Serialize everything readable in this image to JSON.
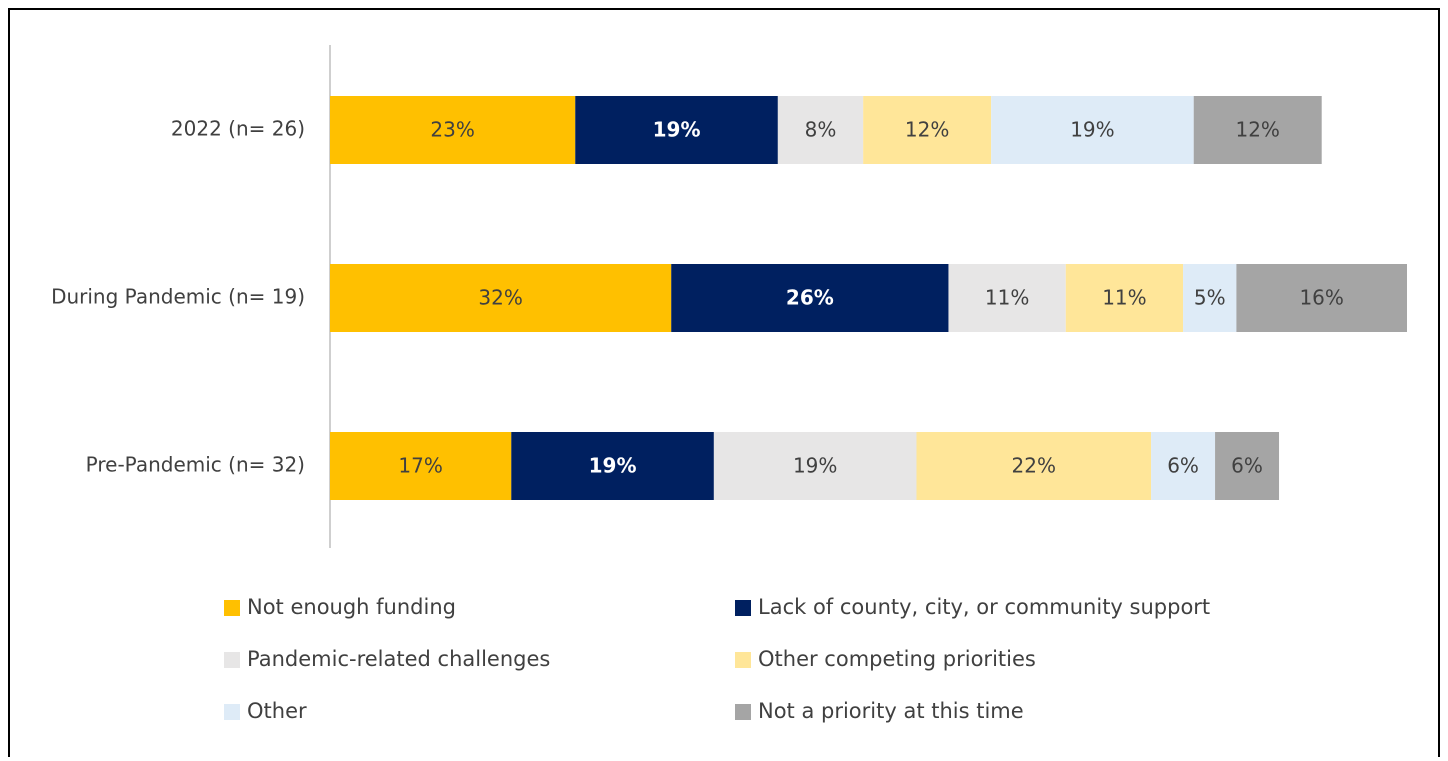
{
  "chart_data": {
    "type": "stacked_bar_horizontal",
    "categories": [
      "2022 (n= 26)",
      "During Pandemic (n= 19)",
      "Pre-Pandemic (n= 32)"
    ],
    "xlim": [
      0,
      101
    ],
    "legend": "bottom",
    "series": [
      {
        "name": "Not enough funding",
        "color": "#FFC000",
        "values": [
          23,
          32,
          17
        ],
        "value_labels": [
          "23%",
          "32%",
          "17%"
        ]
      },
      {
        "name": "Lack of county, city, or community support",
        "color": "#002060",
        "values": [
          19,
          26,
          19
        ],
        "value_labels": [
          "19%",
          "26%",
          "19%"
        ]
      },
      {
        "name": "Pandemic-related challenges",
        "color": "#E7E6E6",
        "values": [
          8,
          11,
          19
        ],
        "value_labels": [
          "8%",
          "11%",
          "19%"
        ]
      },
      {
        "name": "Other competing priorities",
        "color": "#FFE699",
        "values": [
          12,
          11,
          22
        ],
        "value_labels": [
          "12%",
          "11%",
          "22%"
        ]
      },
      {
        "name": "Other",
        "color": "#DEEBF7",
        "values": [
          19,
          5,
          6
        ],
        "value_labels": [
          "19%",
          "5%",
          "6%"
        ]
      },
      {
        "name": "Not a priority at this time",
        "color": "#A5A5A5",
        "values": [
          12,
          16,
          6
        ],
        "value_labels": [
          "12%",
          "16%",
          "6%"
        ]
      }
    ]
  }
}
